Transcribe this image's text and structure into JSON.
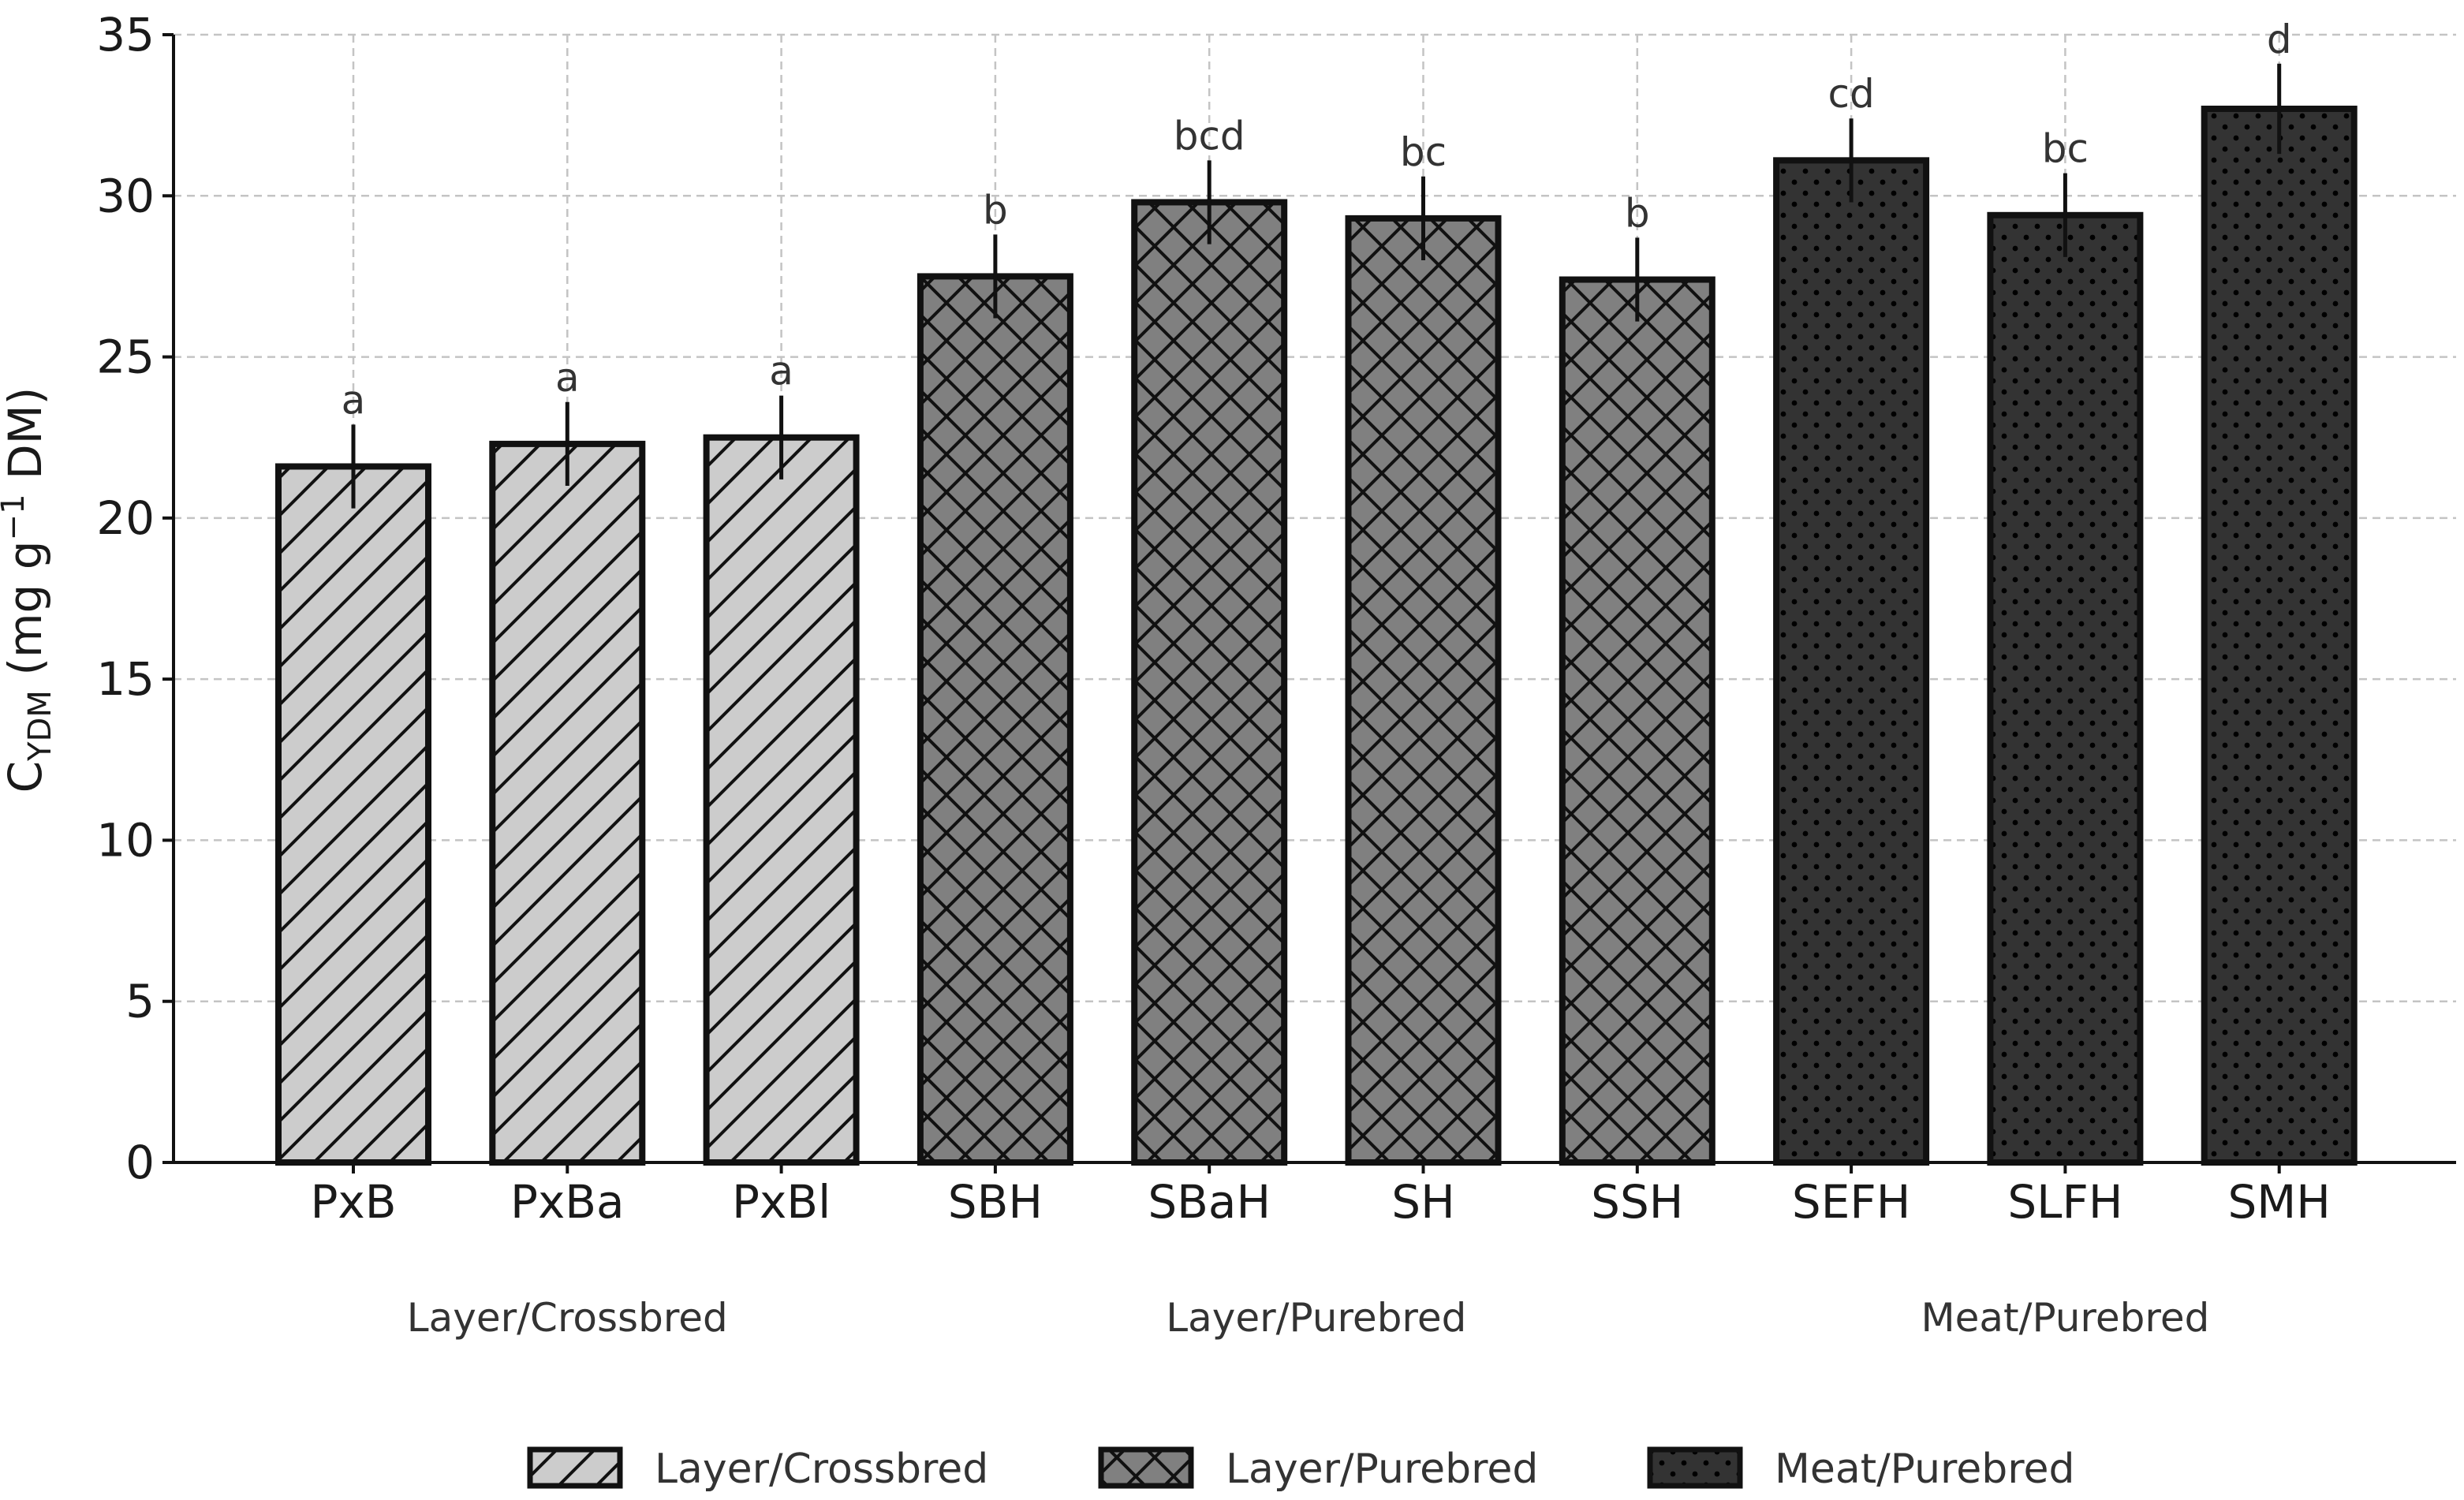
{
  "chart_data": {
    "type": "bar",
    "categories": [
      "PxB",
      "PxBa",
      "PxBl",
      "SBH",
      "SBaH",
      "SH",
      "SSH",
      "SEFH",
      "SLFH",
      "SMH"
    ],
    "values": [
      21.6,
      22.3,
      22.5,
      27.5,
      29.8,
      29.3,
      27.4,
      31.1,
      29.4,
      32.7
    ],
    "errors": [
      1.3,
      1.3,
      1.3,
      1.3,
      1.3,
      1.3,
      1.3,
      1.3,
      1.3,
      1.4
    ],
    "significance": [
      "a",
      "a",
      "a",
      "b",
      "bcd",
      "bc",
      "b",
      "cd",
      "bc",
      "d"
    ],
    "groups": [
      {
        "name": "Layer/Crossbred",
        "categories": [
          "PxB",
          "PxBa",
          "PxBl"
        ],
        "color": "#cccccc",
        "pattern": "diagonal"
      },
      {
        "name": "Layer/Purebred",
        "categories": [
          "SBH",
          "SBaH",
          "SH",
          "SSH"
        ],
        "color": "#808080",
        "pattern": "crosshatch"
      },
      {
        "name": "Meat/Purebred",
        "categories": [
          "SEFH",
          "SLFH",
          "SMH"
        ],
        "color": "#333333",
        "pattern": "dots"
      }
    ],
    "ylabel": {
      "main": "C",
      "subscript": "YDM",
      "units_pre": " (mg g",
      "superscript": "−1",
      "units_post": " DM)"
    },
    "ylim": [
      0,
      35
    ],
    "yticks": [
      0,
      5,
      10,
      15,
      20,
      25,
      30,
      35
    ],
    "grid": true,
    "legend_position": "bottom-center"
  }
}
